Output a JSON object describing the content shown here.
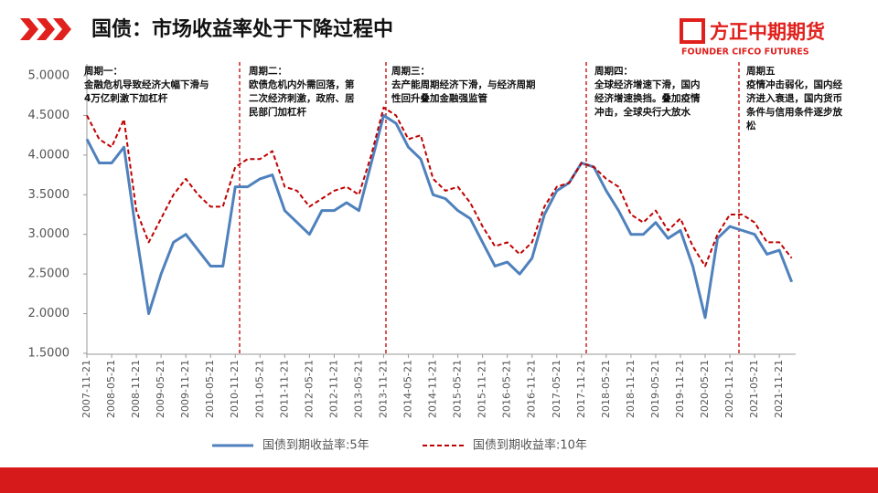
{
  "header": {
    "title": "国债：市场收益率处于下降过程中",
    "logo": "方正中期期货",
    "logo_en": "FOUNDER CIFCO FUTURES"
  },
  "chart_data": {
    "type": "line",
    "categories": [
      "2007-11-21",
      null,
      "2008-05-21",
      null,
      "2008-11-21",
      null,
      "2009-05-21",
      null,
      "2009-11-21",
      null,
      "2010-05-21",
      null,
      "2010-11-21",
      null,
      "2011-05-21",
      null,
      "2011-11-21",
      null,
      "2012-05-21",
      null,
      "2012-11-21",
      null,
      "2013-05-21",
      null,
      "2013-11-21",
      null,
      "2014-05-21",
      null,
      "2014-11-21",
      null,
      "2015-05-21",
      null,
      "2015-11-21",
      null,
      "2016-05-21",
      null,
      "2016-11-21",
      null,
      "2017-05-21",
      null,
      "2017-11-21",
      null,
      "2018-05-21",
      null,
      "2018-11-21",
      null,
      "2019-05-21",
      null,
      "2019-11-21",
      null,
      "2020-05-21",
      null,
      "2020-11-21",
      null,
      "2021-05-21",
      null,
      "2021-11-21",
      null
    ],
    "series": [
      {
        "name": "国债到期收益率:5年",
        "color": "#4f81bd",
        "dash": false,
        "values": [
          4.2,
          3.9,
          3.9,
          4.1,
          3.0,
          2.0,
          2.5,
          2.9,
          3.0,
          2.8,
          2.6,
          2.6,
          3.6,
          3.6,
          3.7,
          3.75,
          3.3,
          3.15,
          3.0,
          3.3,
          3.3,
          3.4,
          3.3,
          3.9,
          4.5,
          4.4,
          4.1,
          3.95,
          3.5,
          3.45,
          3.3,
          3.2,
          2.9,
          2.6,
          2.65,
          2.5,
          2.7,
          3.25,
          3.55,
          3.65,
          3.9,
          3.85,
          3.55,
          3.3,
          3.0,
          3.0,
          3.15,
          2.95,
          3.05,
          2.6,
          1.95,
          2.95,
          3.1,
          3.05,
          3.0,
          2.75,
          2.8,
          2.4
        ]
      },
      {
        "name": "国债到期收益率:10年",
        "color": "#c00000",
        "dash": true,
        "values": [
          4.5,
          4.2,
          4.1,
          4.45,
          3.3,
          2.9,
          3.2,
          3.5,
          3.7,
          3.5,
          3.35,
          3.35,
          3.85,
          3.95,
          3.95,
          4.05,
          3.6,
          3.55,
          3.35,
          3.45,
          3.55,
          3.6,
          3.5,
          4.0,
          4.6,
          4.5,
          4.2,
          4.25,
          3.7,
          3.55,
          3.6,
          3.4,
          3.1,
          2.85,
          2.9,
          2.75,
          2.9,
          3.35,
          3.6,
          3.65,
          3.9,
          3.85,
          3.7,
          3.6,
          3.25,
          3.15,
          3.3,
          3.05,
          3.2,
          2.85,
          2.6,
          3.0,
          3.25,
          3.25,
          3.15,
          2.9,
          2.9,
          2.7
        ]
      }
    ],
    "ylim": [
      1.5,
      5.0
    ],
    "yticks": [
      {
        "value": 1.5,
        "label": "1.5000"
      },
      {
        "value": 2.0,
        "label": "2.0000"
      },
      {
        "value": 2.5,
        "label": "2.5000"
      },
      {
        "value": 3.0,
        "label": "3.0000"
      },
      {
        "value": 3.5,
        "label": "3.5000"
      },
      {
        "value": 4.0,
        "label": "4.0000"
      },
      {
        "value": 4.5,
        "label": "4.5000"
      },
      {
        "value": 5.0,
        "label": "5.0000"
      }
    ],
    "annotations": [
      [
        "周期一：",
        "金融危机导致经济大幅下滑与",
        "4万亿刺激下加杠杆"
      ],
      [
        "周期二：",
        "欧债危机内外需回落，第",
        "二次经济刺激，政府、居",
        "民部门加杠杆"
      ],
      [
        "周期三：",
        "去产能周期经济下滑，与经济周期",
        "性回升叠加金融强监管"
      ],
      [
        "周期四：",
        "全球经济增速下滑，国内",
        "经济增速换挡。叠加疫情",
        "冲击，全球央行大放水"
      ],
      [
        "周期五",
        "疫情冲击弱化，国内经",
        "济进入衰退，国内货币",
        "条件与信用条件逐步放",
        "松"
      ]
    ]
  }
}
